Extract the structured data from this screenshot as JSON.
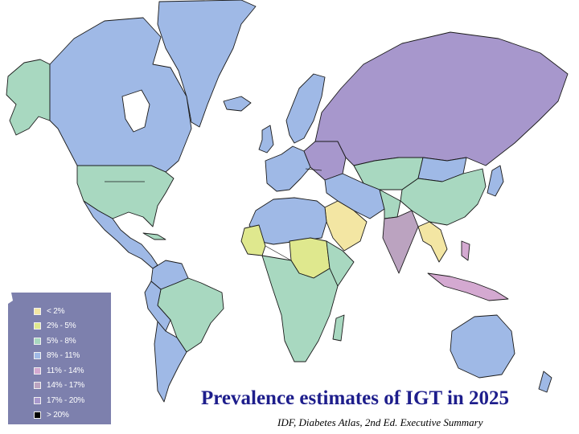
{
  "title": "Prevalence estimates of IGT in 2025",
  "subtitle": "IDF, Diabetes Atlas, 2nd Ed. Executive Summary",
  "colors": {
    "lt2": "#f3e6a3",
    "2to5": "#dfe88e",
    "5to8": "#a8d8c0",
    "8to11": "#9fb9e6",
    "11to14": "#d4a9d1",
    "14to17": "#bba3c0",
    "17to20": "#a797cc",
    "gt20": "#000000",
    "legend_bg": "#7d80ad"
  },
  "legend": {
    "items": [
      {
        "label": "< 2%",
        "color": "#f3e6a3"
      },
      {
        "label": "2% - 5%",
        "color": "#dfe88e"
      },
      {
        "label": "5% - 8%",
        "color": "#a8d8c0"
      },
      {
        "label": "8% - 11%",
        "color": "#9fb9e6"
      },
      {
        "label": "11% - 14%",
        "color": "#d4a9d1"
      },
      {
        "label": "14% - 17%",
        "color": "#bba3c0"
      },
      {
        "label": "17% - 20%",
        "color": "#a797cc"
      },
      {
        "label": "> 20%",
        "color": "#000000"
      }
    ]
  }
}
